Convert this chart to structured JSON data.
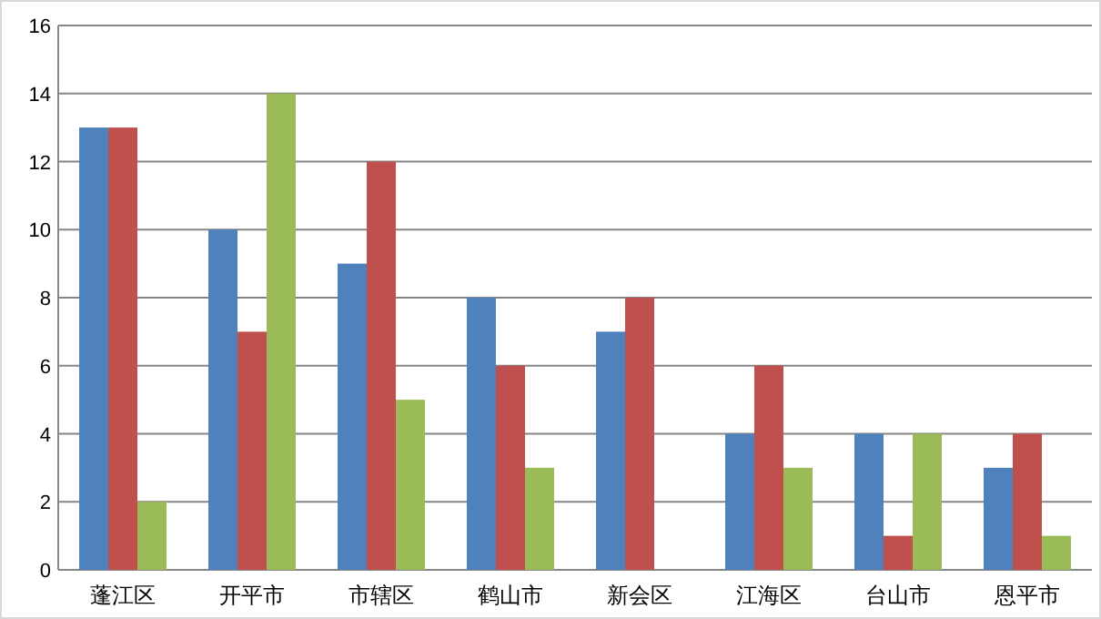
{
  "chart_data": {
    "type": "bar",
    "categories": [
      "蓬江区",
      "开平市",
      "市辖区",
      "鹤山市",
      "新会区",
      "江海区",
      "台山市",
      "恩平市"
    ],
    "series": [
      {
        "color": "#4f81bd",
        "values": [
          13,
          10,
          9,
          8,
          7,
          4,
          4,
          3
        ]
      },
      {
        "color": "#c0504d",
        "values": [
          13,
          7,
          12,
          6,
          8,
          6,
          1,
          4
        ]
      },
      {
        "color": "#9bbb59",
        "values": [
          2,
          14,
          5,
          3,
          0,
          3,
          4,
          1
        ]
      }
    ],
    "ylim": [
      0,
      16
    ],
    "yticks": [
      0,
      2,
      4,
      6,
      8,
      10,
      12,
      14,
      16
    ],
    "grid": "y"
  }
}
